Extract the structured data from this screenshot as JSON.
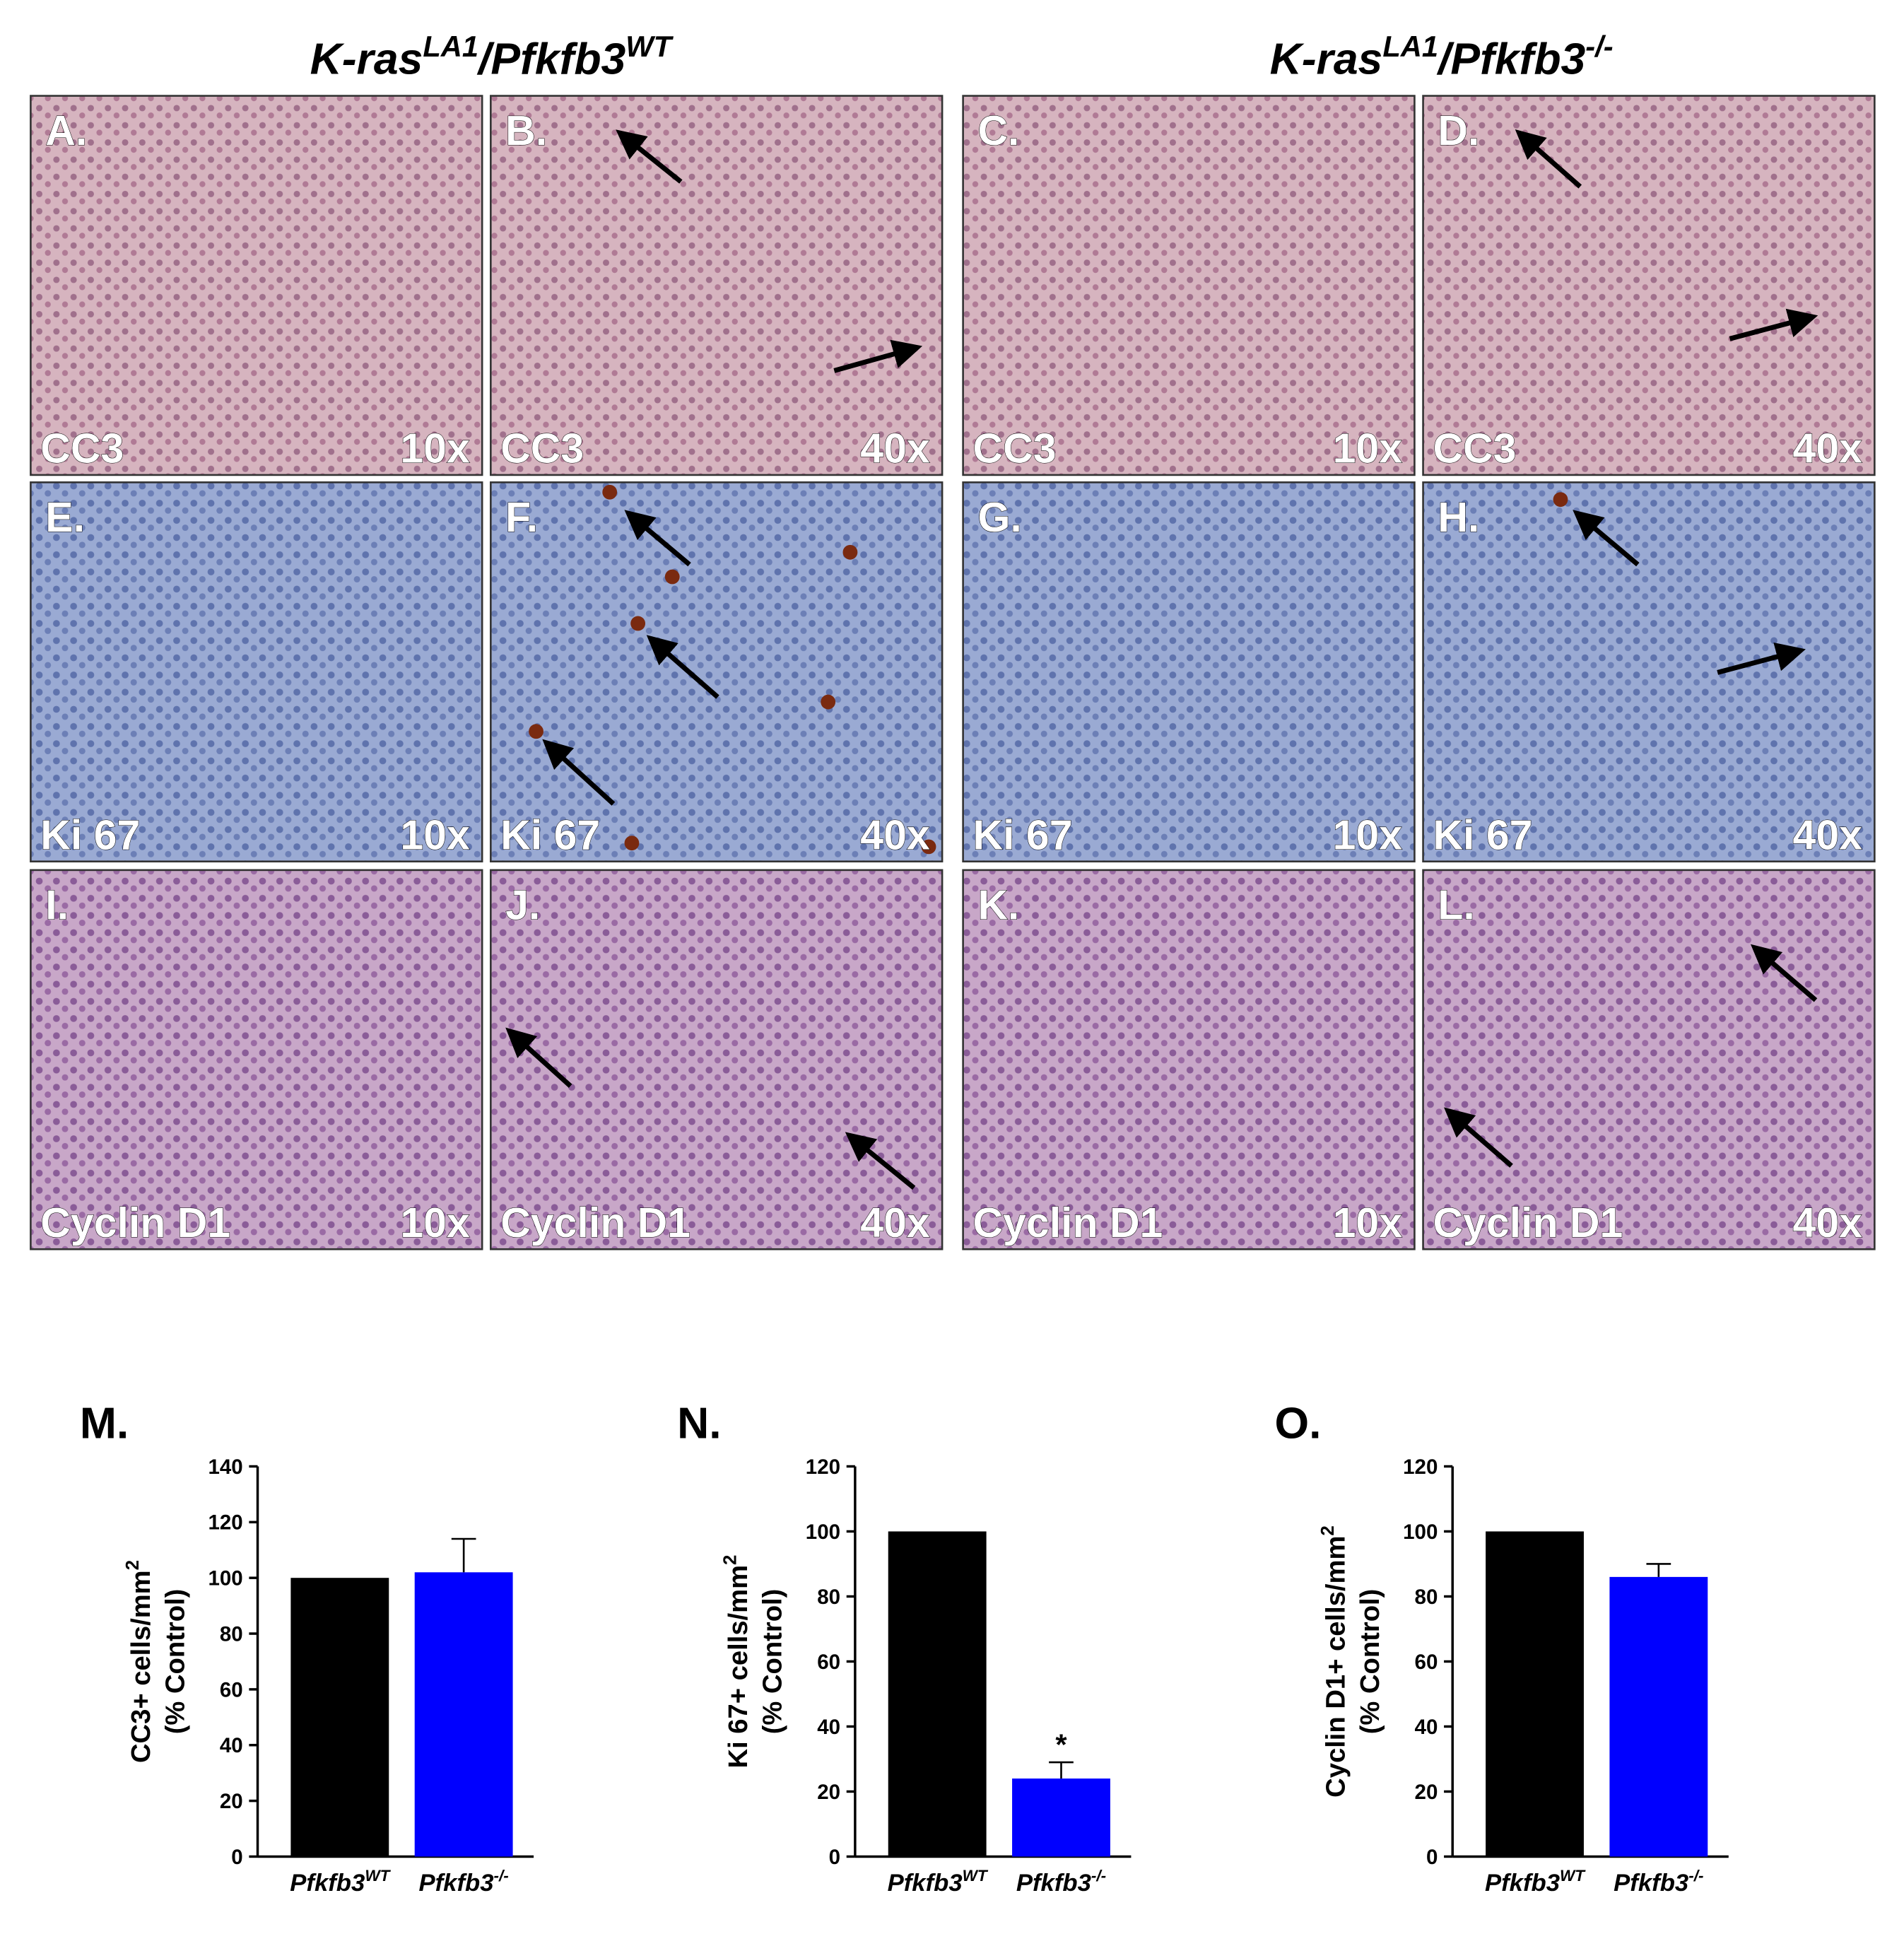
{
  "headers": [
    {
      "base": "K-ras",
      "sup": "LA1",
      "base2": "/Pfkfb3",
      "sup2": "WT"
    },
    {
      "base": "K-ras",
      "sup": "LA1",
      "base2": "/Pfkfb3",
      "sup2": "-/-"
    }
  ],
  "panels": [
    {
      "letter": "A.",
      "stain": "CC3",
      "magnification": "10x"
    },
    {
      "letter": "B.",
      "stain": "CC3",
      "magnification": "40x"
    },
    {
      "letter": "C.",
      "stain": "CC3",
      "magnification": "10x"
    },
    {
      "letter": "D.",
      "stain": "CC3",
      "magnification": "40x"
    },
    {
      "letter": "E.",
      "stain": "Ki 67",
      "magnification": "10x"
    },
    {
      "letter": "F.",
      "stain": "Ki 67",
      "magnification": "40x"
    },
    {
      "letter": "G.",
      "stain": "Ki 67",
      "magnification": "10x"
    },
    {
      "letter": "H.",
      "stain": "Ki 67",
      "magnification": "40x"
    },
    {
      "letter": "I.",
      "stain": "Cyclin D1",
      "magnification": "10x"
    },
    {
      "letter": "J.",
      "stain": "Cyclin D1",
      "magnification": "40x"
    },
    {
      "letter": "K.",
      "stain": "Cyclin D1",
      "magnification": "10x"
    },
    {
      "letter": "L.",
      "stain": "Cyclin D1",
      "magnification": "40x"
    }
  ],
  "chart_data": [
    {
      "type": "bar",
      "panel_label": "M.",
      "ylabel": "CC3+ cells/mm",
      "ylabel_sup": "2",
      "ylabel2": "(% Control)",
      "categories": [
        "Pfkfb3",
        "Pfkfb3"
      ],
      "category_superscripts": [
        "WT",
        "-/-"
      ],
      "values": [
        100,
        102
      ],
      "errors": [
        null,
        12
      ],
      "colors": [
        "#000000",
        "#0000ff"
      ],
      "ylim": [
        0,
        140
      ],
      "yticks": [
        0,
        20,
        40,
        60,
        80,
        100,
        120,
        140
      ]
    },
    {
      "type": "bar",
      "panel_label": "N.",
      "ylabel": "Ki 67+ cells/mm",
      "ylabel_sup": "2",
      "ylabel2": "(% Control)",
      "categories": [
        "Pfkfb3",
        "Pfkfb3"
      ],
      "category_superscripts": [
        "WT",
        "-/-"
      ],
      "values": [
        100,
        24
      ],
      "errors": [
        null,
        5
      ],
      "colors": [
        "#000000",
        "#0000ff"
      ],
      "annotations": [
        null,
        "*"
      ],
      "ylim": [
        0,
        120
      ],
      "yticks": [
        0,
        20,
        40,
        60,
        80,
        100,
        120
      ]
    },
    {
      "type": "bar",
      "panel_label": "O.",
      "ylabel": "Cyclin D1+ cells/mm",
      "ylabel_sup": "2",
      "ylabel2": "(% Control)",
      "categories": [
        "Pfkfb3",
        "Pfkfb3"
      ],
      "category_superscripts": [
        "WT",
        "-/-"
      ],
      "values": [
        100,
        86
      ],
      "errors": [
        null,
        4
      ],
      "colors": [
        "#000000",
        "#0000ff"
      ],
      "ylim": [
        0,
        120
      ],
      "yticks": [
        0,
        20,
        40,
        60,
        80,
        100,
        120
      ]
    }
  ]
}
